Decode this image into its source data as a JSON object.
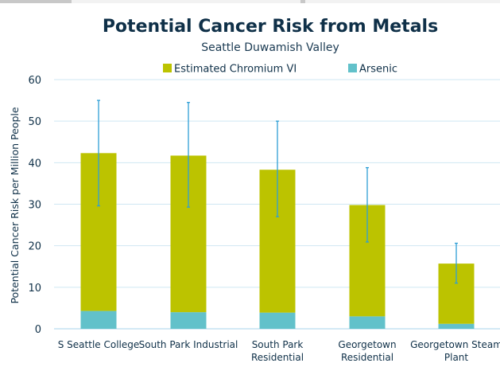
{
  "chart_data": {
    "type": "bar",
    "stacked": true,
    "title": "Potential Cancer Risk from Metals",
    "subtitle": "Seattle Duwamish Valley",
    "ylabel": "Potential Cancer Risk per Million People",
    "xlabel": "",
    "ylim": [
      0,
      60
    ],
    "yticks": [
      0,
      10,
      20,
      30,
      40,
      50,
      60
    ],
    "grid": true,
    "legend_position": "top",
    "categories": [
      [
        "S Seattle College"
      ],
      [
        "South Park Industrial"
      ],
      [
        "South Park",
        "Residential"
      ],
      [
        "Georgetown",
        "Residential"
      ],
      [
        "Georgetown Steam",
        "Plant"
      ]
    ],
    "series": [
      {
        "name": "Estimated Chromium VI",
        "color": "#bcc300",
        "values": [
          38,
          37.7,
          34.4,
          26.8,
          14.5
        ]
      },
      {
        "name": "Arsenic",
        "color": "#62c1ca",
        "values": [
          4.3,
          4.0,
          3.9,
          3.0,
          1.2
        ]
      }
    ],
    "error_bars": {
      "color": "#2e9fd6",
      "low": [
        29.6,
        29.3,
        27.0,
        20.9,
        11.0
      ],
      "high": [
        55.0,
        54.5,
        50.0,
        38.8,
        20.6
      ]
    }
  }
}
